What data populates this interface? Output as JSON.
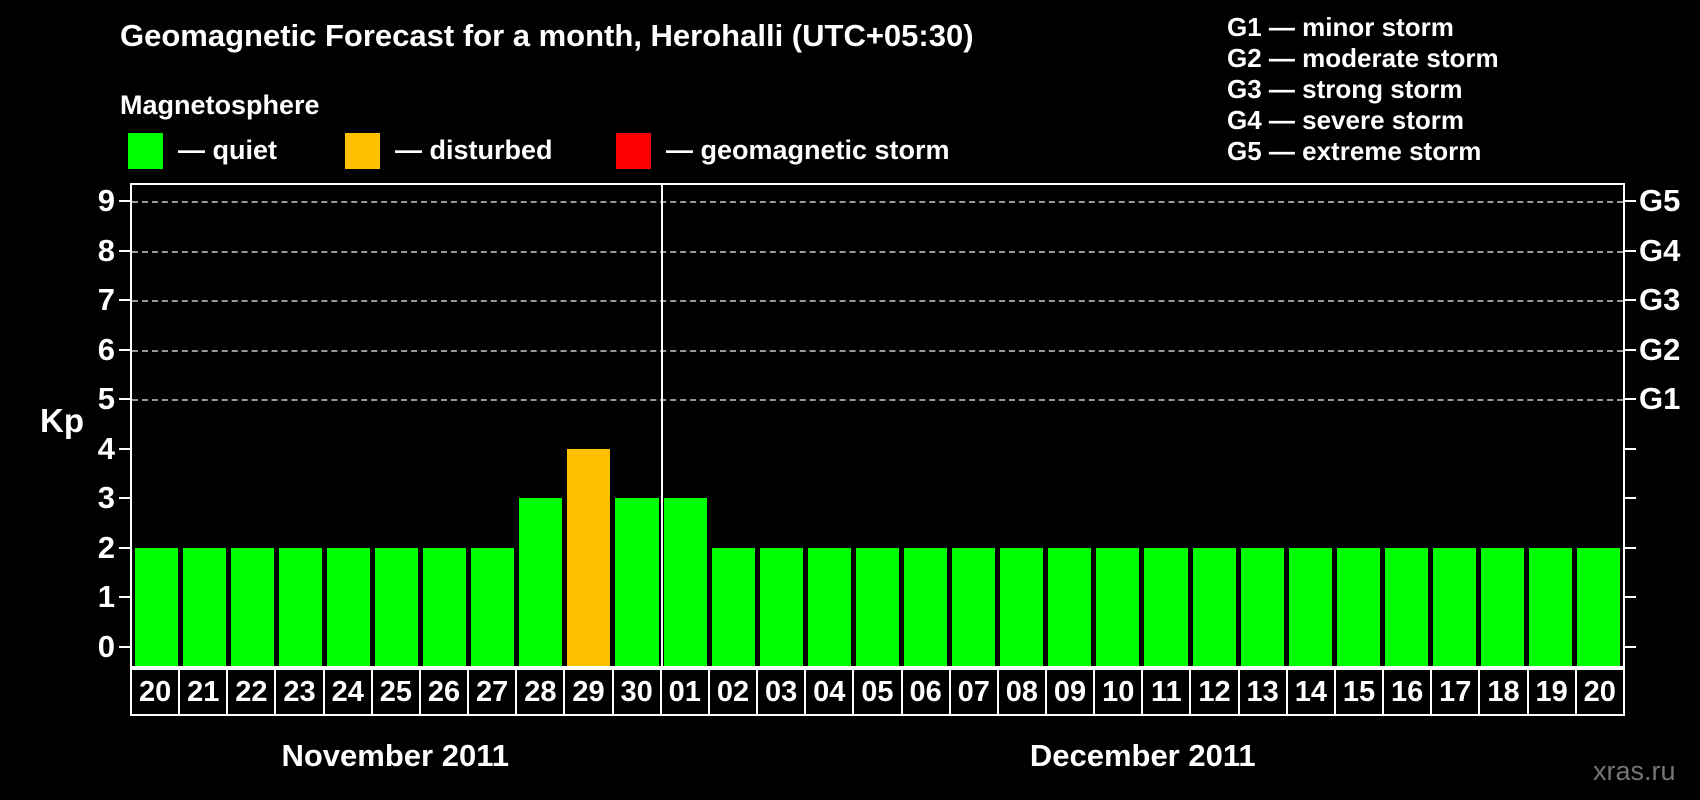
{
  "title": "Geomagnetic Forecast for a month, Herohalli (UTC+05:30)",
  "watermark": "xras.ru",
  "magnetosphere_legend": {
    "heading": "Magnetosphere",
    "items": [
      {
        "key": "quiet",
        "label": "— quiet",
        "color": "#00ff00"
      },
      {
        "key": "disturbed",
        "label": "— disturbed",
        "color": "#ffc000"
      },
      {
        "key": "storm",
        "label": "— geomagnetic storm",
        "color": "#ff0000"
      }
    ]
  },
  "storm_scale_legend": {
    "lines": [
      "G1 — minor storm",
      "G2 — moderate storm",
      "G3 — strong storm",
      "G4 — severe storm",
      "G5 — extreme storm"
    ]
  },
  "chart_data": {
    "type": "bar",
    "left_axis_label": "Kp",
    "ylim": [
      -0.43,
      9.37
    ],
    "yticks": [
      0,
      1,
      2,
      3,
      4,
      5,
      6,
      7,
      8,
      9
    ],
    "gridlines_at": [
      5,
      6,
      7,
      8,
      9
    ],
    "grid_style": "dashed",
    "legend_position": "top",
    "right_axis_labels": [
      {
        "kp": 5,
        "label": "G1"
      },
      {
        "kp": 6,
        "label": "G2"
      },
      {
        "kp": 7,
        "label": "G3"
      },
      {
        "kp": 8,
        "label": "G4"
      },
      {
        "kp": 9,
        "label": "G5"
      }
    ],
    "months": [
      {
        "label": "November 2011",
        "days": 11
      },
      {
        "label": "December 2011",
        "days": 20
      }
    ],
    "categories": [
      "20",
      "21",
      "22",
      "23",
      "24",
      "25",
      "26",
      "27",
      "28",
      "29",
      "30",
      "01",
      "02",
      "03",
      "04",
      "05",
      "06",
      "07",
      "08",
      "09",
      "10",
      "11",
      "12",
      "13",
      "14",
      "15",
      "16",
      "17",
      "18",
      "19",
      "20"
    ],
    "values": [
      2,
      2,
      2,
      2,
      2,
      2,
      2,
      2,
      3,
      4,
      3,
      3,
      2,
      2,
      2,
      2,
      2,
      2,
      2,
      2,
      2,
      2,
      2,
      2,
      2,
      2,
      2,
      2,
      2,
      2,
      2
    ],
    "statuses": [
      "quiet",
      "quiet",
      "quiet",
      "quiet",
      "quiet",
      "quiet",
      "quiet",
      "quiet",
      "quiet",
      "disturbed",
      "quiet",
      "quiet",
      "quiet",
      "quiet",
      "quiet",
      "quiet",
      "quiet",
      "quiet",
      "quiet",
      "quiet",
      "quiet",
      "quiet",
      "quiet",
      "quiet",
      "quiet",
      "quiet",
      "quiet",
      "quiet",
      "quiet",
      "quiet",
      "quiet"
    ],
    "status_colors": {
      "quiet": "#00ff00",
      "disturbed": "#ffc000",
      "storm": "#ff0000"
    }
  },
  "colors": {
    "background": "#000000",
    "text": "#ffffff",
    "grid": "#999999",
    "watermark": "#757575"
  }
}
